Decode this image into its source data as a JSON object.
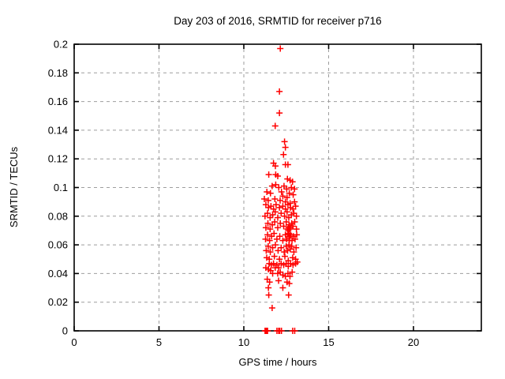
{
  "chart_data": {
    "type": "scatter",
    "title": "Day 203 of 2016, SRMTID for receiver p716",
    "xlabel": "GPS time / hours",
    "ylabel": "SRMTID / TECUs",
    "xlim": [
      0,
      24
    ],
    "ylim": [
      0,
      0.2
    ],
    "grid": true,
    "legend": "none",
    "marker": "plus",
    "colors": {
      "marker": "#ff0000",
      "grid": "#9e9e9e",
      "border": "#000000"
    },
    "x_ticks": [
      {
        "v": 0,
        "label": "0"
      },
      {
        "v": 5,
        "label": "5"
      },
      {
        "v": 10,
        "label": "10"
      },
      {
        "v": 15,
        "label": "15"
      },
      {
        "v": 20,
        "label": "20"
      }
    ],
    "y_ticks": [
      {
        "v": 0,
        "label": "0"
      },
      {
        "v": 0.02,
        "label": "0.02"
      },
      {
        "v": 0.04,
        "label": "0.04"
      },
      {
        "v": 0.06,
        "label": "0.06"
      },
      {
        "v": 0.08,
        "label": "0.08"
      },
      {
        "v": 0.1,
        "label": "0.1"
      },
      {
        "v": 0.12,
        "label": "0.12"
      },
      {
        "v": 0.14,
        "label": "0.14"
      },
      {
        "v": 0.16,
        "label": "0.16"
      },
      {
        "v": 0.18,
        "label": "0.18"
      },
      {
        "v": 0.2,
        "label": "0.2"
      }
    ],
    "points": [
      [
        12.15,
        0.197
      ],
      [
        12.1,
        0.167
      ],
      [
        12.1,
        0.152
      ],
      [
        11.85,
        0.143
      ],
      [
        12.4,
        0.132
      ],
      [
        12.45,
        0.128
      ],
      [
        12.34,
        0.123
      ],
      [
        11.75,
        0.117
      ],
      [
        11.86,
        0.115
      ],
      [
        12.45,
        0.116
      ],
      [
        12.6,
        0.116
      ],
      [
        11.47,
        0.109
      ],
      [
        11.88,
        0.109
      ],
      [
        12.0,
        0.108
      ],
      [
        12.57,
        0.106
      ],
      [
        12.73,
        0.105
      ],
      [
        12.87,
        0.104
      ],
      [
        11.67,
        0.101
      ],
      [
        11.88,
        0.102
      ],
      [
        12.06,
        0.1
      ],
      [
        12.37,
        0.101
      ],
      [
        12.53,
        0.099
      ],
      [
        12.8,
        0.1
      ],
      [
        12.99,
        0.099
      ],
      [
        11.36,
        0.097
      ],
      [
        11.57,
        0.096
      ],
      [
        12.22,
        0.097
      ],
      [
        12.68,
        0.096
      ],
      [
        12.91,
        0.095
      ],
      [
        11.21,
        0.092
      ],
      [
        11.44,
        0.091
      ],
      [
        11.83,
        0.092
      ],
      [
        12.14,
        0.091
      ],
      [
        12.45,
        0.09
      ],
      [
        12.73,
        0.089
      ],
      [
        12.99,
        0.09
      ],
      [
        12.3,
        0.094
      ],
      [
        12.55,
        0.093
      ],
      [
        11.3,
        0.088
      ],
      [
        11.45,
        0.086
      ],
      [
        11.6,
        0.087
      ],
      [
        11.75,
        0.085
      ],
      [
        11.9,
        0.088
      ],
      [
        12.1,
        0.086
      ],
      [
        12.3,
        0.087
      ],
      [
        12.45,
        0.085
      ],
      [
        12.6,
        0.088
      ],
      [
        12.75,
        0.086
      ],
      [
        12.9,
        0.085
      ],
      [
        13.05,
        0.087
      ],
      [
        11.25,
        0.08
      ],
      [
        11.4,
        0.082
      ],
      [
        11.55,
        0.079
      ],
      [
        11.7,
        0.081
      ],
      [
        11.85,
        0.083
      ],
      [
        12.0,
        0.079
      ],
      [
        12.2,
        0.082
      ],
      [
        12.4,
        0.08
      ],
      [
        12.55,
        0.083
      ],
      [
        12.65,
        0.079
      ],
      [
        12.8,
        0.081
      ],
      [
        12.95,
        0.082
      ],
      [
        13.1,
        0.08
      ],
      [
        11.3,
        0.072
      ],
      [
        11.42,
        0.075
      ],
      [
        11.55,
        0.071
      ],
      [
        11.68,
        0.074
      ],
      [
        11.82,
        0.076
      ],
      [
        12.0,
        0.072
      ],
      [
        12.15,
        0.075
      ],
      [
        12.35,
        0.073
      ],
      [
        12.5,
        0.076
      ],
      [
        12.58,
        0.071
      ],
      [
        12.66,
        0.074
      ],
      [
        12.74,
        0.072
      ],
      [
        12.82,
        0.075
      ],
      [
        12.9,
        0.073
      ],
      [
        13.0,
        0.076
      ],
      [
        13.1,
        0.071
      ],
      [
        11.28,
        0.064
      ],
      [
        11.4,
        0.067
      ],
      [
        11.52,
        0.063
      ],
      [
        11.64,
        0.066
      ],
      [
        11.78,
        0.068
      ],
      [
        11.95,
        0.064
      ],
      [
        12.12,
        0.066
      ],
      [
        12.3,
        0.063
      ],
      [
        12.45,
        0.067
      ],
      [
        12.52,
        0.064
      ],
      [
        12.6,
        0.068
      ],
      [
        12.68,
        0.065
      ],
      [
        12.76,
        0.067
      ],
      [
        12.84,
        0.063
      ],
      [
        12.92,
        0.066
      ],
      [
        13.02,
        0.064
      ],
      [
        13.12,
        0.067
      ],
      [
        12.62,
        0.07
      ],
      [
        12.66,
        0.068
      ],
      [
        12.7,
        0.071
      ],
      [
        12.72,
        0.066
      ],
      [
        12.68,
        0.063
      ],
      [
        12.64,
        0.072
      ],
      [
        11.32,
        0.056
      ],
      [
        11.44,
        0.059
      ],
      [
        11.56,
        0.055
      ],
      [
        11.7,
        0.058
      ],
      [
        11.86,
        0.06
      ],
      [
        12.02,
        0.056
      ],
      [
        12.2,
        0.058
      ],
      [
        12.38,
        0.055
      ],
      [
        12.5,
        0.059
      ],
      [
        12.58,
        0.056
      ],
      [
        12.66,
        0.06
      ],
      [
        12.74,
        0.057
      ],
      [
        12.82,
        0.059
      ],
      [
        12.95,
        0.055
      ],
      [
        13.08,
        0.058
      ],
      [
        11.35,
        0.051
      ],
      [
        11.5,
        0.05
      ],
      [
        11.8,
        0.052
      ],
      [
        12.1,
        0.05
      ],
      [
        12.42,
        0.052
      ],
      [
        12.62,
        0.049
      ],
      [
        12.88,
        0.051
      ],
      [
        13.05,
        0.05
      ],
      [
        11.5,
        0.047
      ],
      [
        11.62,
        0.046
      ],
      [
        11.75,
        0.047
      ],
      [
        11.3,
        0.044
      ],
      [
        11.45,
        0.043
      ],
      [
        11.58,
        0.042
      ],
      [
        11.7,
        0.04
      ],
      [
        11.85,
        0.044
      ],
      [
        11.95,
        0.046
      ],
      [
        12.05,
        0.044
      ],
      [
        12.2,
        0.047
      ],
      [
        12.35,
        0.046
      ],
      [
        12.5,
        0.047
      ],
      [
        12.62,
        0.045
      ],
      [
        12.75,
        0.047
      ],
      [
        12.9,
        0.046
      ],
      [
        13.05,
        0.047
      ],
      [
        13.15,
        0.048
      ],
      [
        12.0,
        0.04
      ],
      [
        12.15,
        0.041
      ],
      [
        12.3,
        0.039
      ],
      [
        12.45,
        0.038
      ],
      [
        12.6,
        0.04
      ],
      [
        12.72,
        0.038
      ],
      [
        12.85,
        0.041
      ],
      [
        11.38,
        0.036
      ],
      [
        11.52,
        0.034
      ],
      [
        12.05,
        0.035
      ],
      [
        12.55,
        0.034
      ],
      [
        12.68,
        0.033
      ],
      [
        11.45,
        0.03
      ],
      [
        12.3,
        0.03
      ],
      [
        11.47,
        0.025
      ],
      [
        12.64,
        0.025
      ],
      [
        11.67,
        0.016
      ],
      [
        11.25,
        0
      ],
      [
        11.3,
        0
      ],
      [
        11.35,
        0
      ],
      [
        11.4,
        0
      ],
      [
        11.95,
        0
      ],
      [
        12.05,
        0
      ],
      [
        12.12,
        0
      ],
      [
        12.22,
        0
      ],
      [
        12.88,
        0
      ],
      [
        13.0,
        0
      ]
    ]
  }
}
